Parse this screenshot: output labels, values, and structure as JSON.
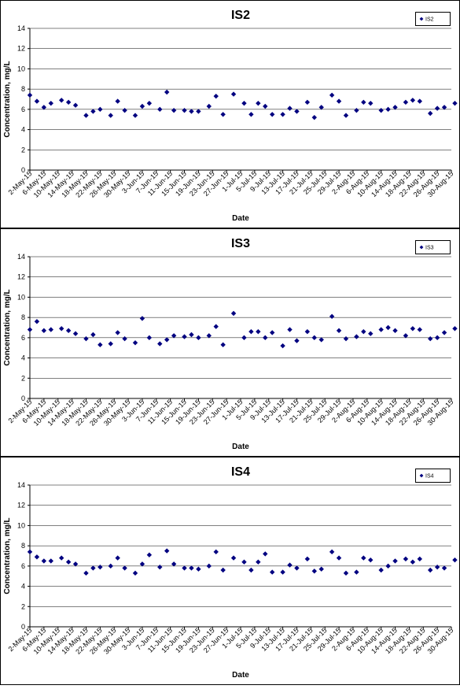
{
  "chart_data": [
    {
      "type": "scatter",
      "title": "IS2",
      "xlabel": "Date",
      "ylabel": "Concentration, mg/L",
      "ylim": [
        0,
        14
      ],
      "yticks": [
        0,
        2,
        4,
        6,
        8,
        10,
        12,
        14
      ],
      "grid": true,
      "legend_position": "top-right",
      "marker_color": "#000080",
      "xticks": [
        "2-May-15",
        "6-May-15",
        "10-May-15",
        "14-May-15",
        "18-May-15",
        "22-May-15",
        "26-May-15",
        "30-May-15",
        "3-Jun-15",
        "7-Jun-15",
        "11-Jun-15",
        "15-Jun-15",
        "19-Jun-15",
        "23-Jun-15",
        "27-Jun-15",
        "1-Jul-15",
        "5-Jul-15",
        "9-Jul-15",
        "13-Jul-15",
        "17-Jul-15",
        "21-Jul-15",
        "25-Jul-15",
        "29-Jul-15",
        "2-Aug-15",
        "6-Aug-15",
        "10-Aug-15",
        "14-Aug-15",
        "18-Aug-15",
        "22-Aug-15",
        "26-Aug-15",
        "30-Aug-15"
      ],
      "series": [
        {
          "name": "IS2",
          "points": [
            [
              "2-May-15",
              7.4
            ],
            [
              "4-May-15",
              6.8
            ],
            [
              "6-May-15",
              6.2
            ],
            [
              "8-May-15",
              6.6
            ],
            [
              "11-May-15",
              6.9
            ],
            [
              "13-May-15",
              6.7
            ],
            [
              "15-May-15",
              6.4
            ],
            [
              "18-May-15",
              5.4
            ],
            [
              "20-May-15",
              5.8
            ],
            [
              "22-May-15",
              6.0
            ],
            [
              "25-May-15",
              5.4
            ],
            [
              "27-May-15",
              6.8
            ],
            [
              "29-May-15",
              5.9
            ],
            [
              "1-Jun-15",
              5.4
            ],
            [
              "3-Jun-15",
              6.3
            ],
            [
              "5-Jun-15",
              6.6
            ],
            [
              "8-Jun-15",
              6.0
            ],
            [
              "10-Jun-15",
              7.7
            ],
            [
              "12-Jun-15",
              5.9
            ],
            [
              "15-Jun-15",
              5.9
            ],
            [
              "17-Jun-15",
              5.8
            ],
            [
              "19-Jun-15",
              5.8
            ],
            [
              "22-Jun-15",
              6.3
            ],
            [
              "24-Jun-15",
              7.3
            ],
            [
              "26-Jun-15",
              5.5
            ],
            [
              "29-Jun-15",
              7.5
            ],
            [
              "2-Jul-15",
              6.6
            ],
            [
              "4-Jul-15",
              5.5
            ],
            [
              "6-Jul-15",
              6.6
            ],
            [
              "8-Jul-15",
              6.3
            ],
            [
              "10-Jul-15",
              5.5
            ],
            [
              "13-Jul-15",
              5.5
            ],
            [
              "15-Jul-15",
              6.1
            ],
            [
              "17-Jul-15",
              5.8
            ],
            [
              "20-Jul-15",
              6.7
            ],
            [
              "22-Jul-15",
              5.2
            ],
            [
              "24-Jul-15",
              6.2
            ],
            [
              "27-Jul-15",
              7.4
            ],
            [
              "29-Jul-15",
              6.8
            ],
            [
              "31-Jul-15",
              5.4
            ],
            [
              "3-Aug-15",
              5.9
            ],
            [
              "5-Aug-15",
              6.7
            ],
            [
              "7-Aug-15",
              6.6
            ],
            [
              "10-Aug-15",
              5.9
            ],
            [
              "12-Aug-15",
              6.0
            ],
            [
              "14-Aug-15",
              6.2
            ],
            [
              "17-Aug-15",
              6.7
            ],
            [
              "19-Aug-15",
              6.9
            ],
            [
              "21-Aug-15",
              6.8
            ],
            [
              "24-Aug-15",
              5.6
            ],
            [
              "26-Aug-15",
              6.1
            ],
            [
              "28-Aug-15",
              6.2
            ],
            [
              "31-Aug-15",
              6.6
            ]
          ]
        }
      ]
    },
    {
      "type": "scatter",
      "title": "IS3",
      "xlabel": "Date",
      "ylabel": "Concentration, mg/L",
      "ylim": [
        0,
        14
      ],
      "yticks": [
        0,
        2,
        4,
        6,
        8,
        10,
        12,
        14
      ],
      "grid": true,
      "legend_position": "top-right",
      "marker_color": "#000080",
      "xticks": [
        "2-May-15",
        "6-May-15",
        "10-May-15",
        "14-May-15",
        "18-May-15",
        "22-May-15",
        "26-May-15",
        "30-May-15",
        "3-Jun-15",
        "7-Jun-15",
        "11-Jun-15",
        "15-Jun-15",
        "19-Jun-15",
        "23-Jun-15",
        "27-Jun-15",
        "1-Jul-15",
        "5-Jul-15",
        "9-Jul-15",
        "13-Jul-15",
        "17-Jul-15",
        "21-Jul-15",
        "25-Jul-15",
        "29-Jul-15",
        "2-Aug-15",
        "6-Aug-15",
        "10-Aug-15",
        "14-Aug-15",
        "18-Aug-15",
        "22-Aug-15",
        "26-Aug-15",
        "30-Aug-15"
      ],
      "series": [
        {
          "name": "IS3",
          "points": [
            [
              "2-May-15",
              6.8
            ],
            [
              "4-May-15",
              7.6
            ],
            [
              "6-May-15",
              6.7
            ],
            [
              "8-May-15",
              6.8
            ],
            [
              "11-May-15",
              6.9
            ],
            [
              "13-May-15",
              6.7
            ],
            [
              "15-May-15",
              6.4
            ],
            [
              "18-May-15",
              5.9
            ],
            [
              "20-May-15",
              6.3
            ],
            [
              "22-May-15",
              5.3
            ],
            [
              "25-May-15",
              5.4
            ],
            [
              "27-May-15",
              6.5
            ],
            [
              "29-May-15",
              5.9
            ],
            [
              "1-Jun-15",
              5.5
            ],
            [
              "3-Jun-15",
              7.9
            ],
            [
              "5-Jun-15",
              6.0
            ],
            [
              "8-Jun-15",
              5.4
            ],
            [
              "10-Jun-15",
              5.8
            ],
            [
              "12-Jun-15",
              6.2
            ],
            [
              "15-Jun-15",
              6.1
            ],
            [
              "17-Jun-15",
              6.3
            ],
            [
              "19-Jun-15",
              6.0
            ],
            [
              "22-Jun-15",
              6.2
            ],
            [
              "24-Jun-15",
              7.1
            ],
            [
              "26-Jun-15",
              5.3
            ],
            [
              "29-Jun-15",
              8.4
            ],
            [
              "2-Jul-15",
              6.0
            ],
            [
              "4-Jul-15",
              6.6
            ],
            [
              "6-Jul-15",
              6.6
            ],
            [
              "8-Jul-15",
              6.0
            ],
            [
              "10-Jul-15",
              6.5
            ],
            [
              "13-Jul-15",
              5.2
            ],
            [
              "15-Jul-15",
              6.8
            ],
            [
              "17-Jul-15",
              5.7
            ],
            [
              "20-Jul-15",
              6.6
            ],
            [
              "22-Jul-15",
              6.0
            ],
            [
              "24-Jul-15",
              5.8
            ],
            [
              "27-Jul-15",
              8.1
            ],
            [
              "29-Jul-15",
              6.7
            ],
            [
              "31-Jul-15",
              5.9
            ],
            [
              "3-Aug-15",
              6.1
            ],
            [
              "5-Aug-15",
              6.6
            ],
            [
              "7-Aug-15",
              6.4
            ],
            [
              "10-Aug-15",
              6.8
            ],
            [
              "12-Aug-15",
              7.0
            ],
            [
              "14-Aug-15",
              6.7
            ],
            [
              "17-Aug-15",
              6.2
            ],
            [
              "19-Aug-15",
              6.9
            ],
            [
              "21-Aug-15",
              6.8
            ],
            [
              "24-Aug-15",
              5.9
            ],
            [
              "26-Aug-15",
              6.0
            ],
            [
              "28-Aug-15",
              6.5
            ],
            [
              "31-Aug-15",
              6.9
            ]
          ]
        }
      ]
    },
    {
      "type": "scatter",
      "title": "IS4",
      "xlabel": "Date",
      "ylabel": "Concentration, mg/L",
      "ylim": [
        0,
        14
      ],
      "yticks": [
        0,
        2,
        4,
        6,
        8,
        10,
        12,
        14
      ],
      "grid": true,
      "legend_position": "top-right",
      "marker_color": "#000080",
      "xticks": [
        "2-May-15",
        "6-May-15",
        "10-May-15",
        "14-May-15",
        "18-May-15",
        "22-May-15",
        "26-May-15",
        "30-May-15",
        "3-Jun-15",
        "7-Jun-15",
        "11-Jun-15",
        "15-Jun-15",
        "19-Jun-15",
        "23-Jun-15",
        "27-Jun-15",
        "1-Jul-15",
        "5-Jul-15",
        "9-Jul-15",
        "13-Jul-15",
        "17-Jul-15",
        "21-Jul-15",
        "25-Jul-15",
        "29-Jul-15",
        "2-Aug-15",
        "6-Aug-15",
        "10-Aug-15",
        "14-Aug-15",
        "18-Aug-15",
        "22-Aug-15",
        "26-Aug-15",
        "30-Aug-15"
      ],
      "series": [
        {
          "name": "IS4",
          "points": [
            [
              "2-May-15",
              7.4
            ],
            [
              "4-May-15",
              6.9
            ],
            [
              "6-May-15",
              6.5
            ],
            [
              "8-May-15",
              6.5
            ],
            [
              "11-May-15",
              6.8
            ],
            [
              "13-May-15",
              6.4
            ],
            [
              "15-May-15",
              6.2
            ],
            [
              "18-May-15",
              5.3
            ],
            [
              "20-May-15",
              5.8
            ],
            [
              "22-May-15",
              5.9
            ],
            [
              "25-May-15",
              6.0
            ],
            [
              "27-May-15",
              6.8
            ],
            [
              "29-May-15",
              5.8
            ],
            [
              "1-Jun-15",
              5.3
            ],
            [
              "3-Jun-15",
              6.2
            ],
            [
              "5-Jun-15",
              7.1
            ],
            [
              "8-Jun-15",
              5.9
            ],
            [
              "10-Jun-15",
              7.5
            ],
            [
              "12-Jun-15",
              6.2
            ],
            [
              "15-Jun-15",
              5.8
            ],
            [
              "17-Jun-15",
              5.8
            ],
            [
              "19-Jun-15",
              5.7
            ],
            [
              "22-Jun-15",
              6.0
            ],
            [
              "24-Jun-15",
              7.4
            ],
            [
              "26-Jun-15",
              5.6
            ],
            [
              "29-Jun-15",
              6.8
            ],
            [
              "2-Jul-15",
              6.4
            ],
            [
              "4-Jul-15",
              5.6
            ],
            [
              "6-Jul-15",
              6.4
            ],
            [
              "8-Jul-15",
              7.2
            ],
            [
              "10-Jul-15",
              5.4
            ],
            [
              "13-Jul-15",
              5.4
            ],
            [
              "15-Jul-15",
              6.1
            ],
            [
              "17-Jul-15",
              5.8
            ],
            [
              "20-Jul-15",
              6.7
            ],
            [
              "22-Jul-15",
              5.5
            ],
            [
              "24-Jul-15",
              5.7
            ],
            [
              "27-Jul-15",
              7.4
            ],
            [
              "29-Jul-15",
              6.8
            ],
            [
              "31-Jul-15",
              5.3
            ],
            [
              "3-Aug-15",
              5.4
            ],
            [
              "5-Aug-15",
              6.8
            ],
            [
              "7-Aug-15",
              6.6
            ],
            [
              "10-Aug-15",
              5.6
            ],
            [
              "12-Aug-15",
              6.0
            ],
            [
              "14-Aug-15",
              6.5
            ],
            [
              "17-Aug-15",
              6.7
            ],
            [
              "19-Aug-15",
              6.4
            ],
            [
              "21-Aug-15",
              6.7
            ],
            [
              "24-Aug-15",
              5.6
            ],
            [
              "26-Aug-15",
              5.9
            ],
            [
              "28-Aug-15",
              5.8
            ],
            [
              "31-Aug-15",
              6.6
            ]
          ]
        }
      ]
    }
  ]
}
